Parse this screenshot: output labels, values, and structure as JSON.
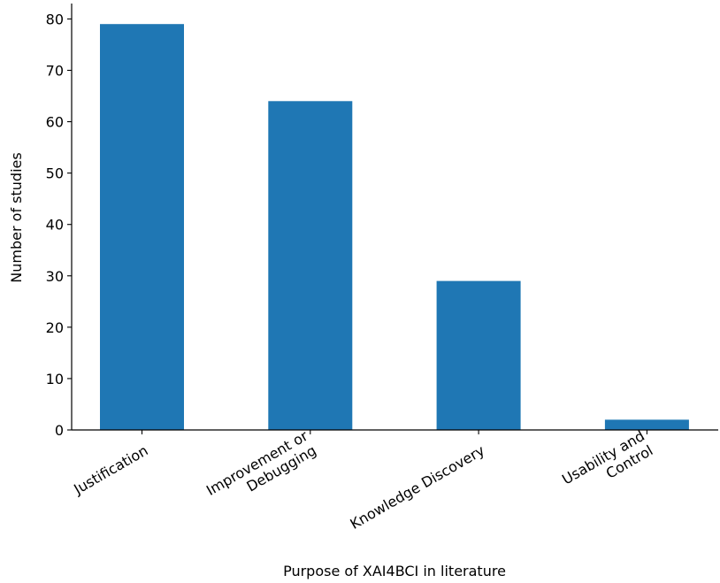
{
  "chart_data": {
    "type": "bar",
    "title": "",
    "xlabel": "Purpose of XAI4BCI in literature",
    "ylabel": "Number of studies",
    "categories": [
      [
        "Justification"
      ],
      [
        "Improvement or",
        "Debugging"
      ],
      [
        "Knowledge Discovery"
      ],
      [
        "Usability and",
        "Control"
      ]
    ],
    "values": [
      79,
      64,
      29,
      2
    ],
    "ylim": [
      0,
      83
    ],
    "yticks": [
      0,
      10,
      20,
      30,
      40,
      50,
      60,
      70,
      80
    ],
    "bar_color": "#1f77b4",
    "grid": false,
    "legend": "none",
    "spines": [
      "left",
      "bottom"
    ]
  }
}
